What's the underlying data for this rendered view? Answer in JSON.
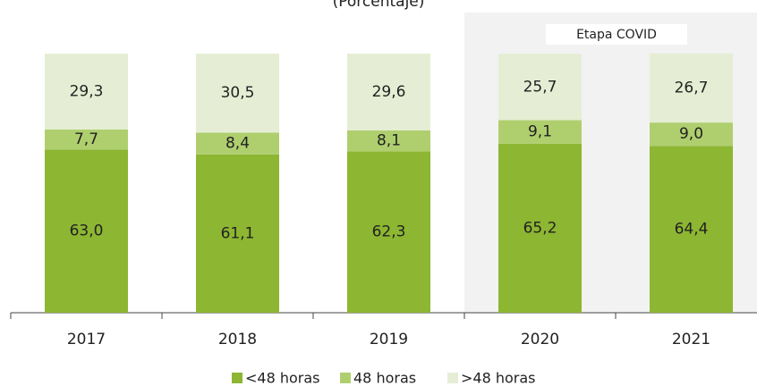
{
  "chart_data": {
    "type": "bar",
    "stacked": true,
    "title": "(Porcentaje)",
    "annotation": "Etapa COVID",
    "categories": [
      "2017",
      "2018",
      "2019",
      "2020",
      "2021"
    ],
    "series": [
      {
        "name": "<48 horas",
        "color": "#8db632",
        "values": [
          63.0,
          61.1,
          62.3,
          65.2,
          64.4
        ],
        "value_labels": [
          "63,0",
          "61,1",
          "62,3",
          "65,2",
          "64,4"
        ]
      },
      {
        "name": "48 horas",
        "color": "#afcf6f",
        "values": [
          7.7,
          8.4,
          8.1,
          9.1,
          9.0
        ],
        "value_labels": [
          "7,7",
          "8,4",
          "8,1",
          "9,1",
          "9,0"
        ]
      },
      {
        "name": ">48 horas",
        "color": "#e5eed4",
        "values": [
          29.3,
          30.5,
          29.6,
          25.7,
          26.7
        ],
        "value_labels": [
          "29,3",
          "30,5",
          "29,6",
          "25,7",
          "26,7"
        ]
      }
    ],
    "ylim": [
      0,
      100
    ]
  }
}
